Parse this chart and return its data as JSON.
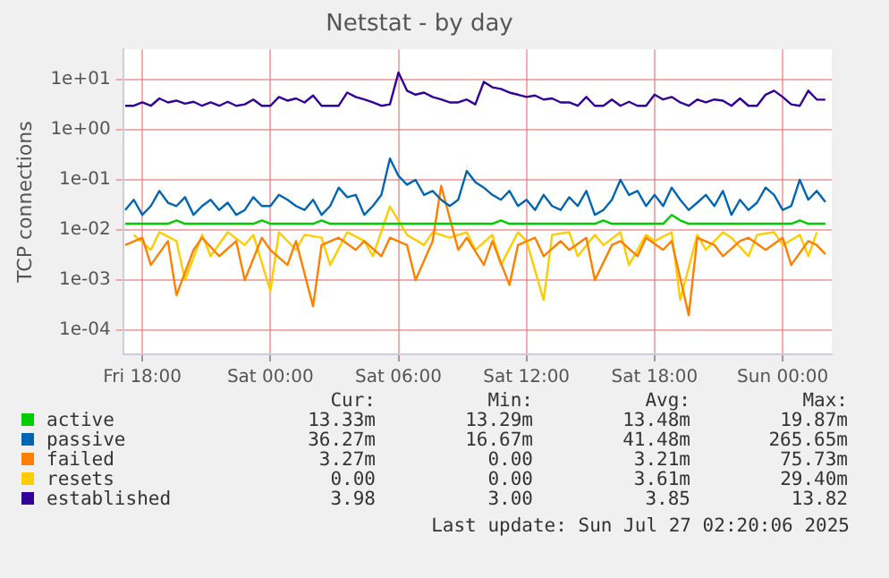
{
  "chart_data": {
    "type": "line",
    "title": "Netstat - by day",
    "ylabel": "TCP connections",
    "log": "y",
    "grid": true,
    "legend": "bottom",
    "marker": "none",
    "line_style": "solid",
    "xlim": [
      "2025-07-25T17:06",
      "2025-07-27T02:18"
    ],
    "ylim": [
      3.3e-05,
      40
    ],
    "xticks": [
      {
        "value": "2025-07-25T18:00",
        "label": "Fri 18:00"
      },
      {
        "value": "2025-07-26T00:00",
        "label": "Sat 00:00"
      },
      {
        "value": "2025-07-26T06:00",
        "label": "Sat 06:00"
      },
      {
        "value": "2025-07-26T12:00",
        "label": "Sat 12:00"
      },
      {
        "value": "2025-07-26T18:00",
        "label": "Sat 18:00"
      },
      {
        "value": "2025-07-27T00:00",
        "label": "Sun 00:00"
      }
    ],
    "yticks": [
      {
        "value": 0.0001,
        "label": "1e-04"
      },
      {
        "value": 0.001,
        "label": "1e-03"
      },
      {
        "value": 0.01,
        "label": "1e-02"
      },
      {
        "value": 0.1,
        "label": "1e-01"
      },
      {
        "value": 1,
        "label": "1e+00"
      },
      {
        "value": 10,
        "label": "1e+01"
      }
    ],
    "x": [
      "2025-07-25T17:12",
      "2025-07-25T17:36",
      "2025-07-25T18:00",
      "2025-07-25T18:24",
      "2025-07-25T18:48",
      "2025-07-25T19:12",
      "2025-07-25T19:36",
      "2025-07-25T20:00",
      "2025-07-25T20:24",
      "2025-07-25T20:48",
      "2025-07-25T21:12",
      "2025-07-25T21:36",
      "2025-07-25T22:00",
      "2025-07-25T22:24",
      "2025-07-25T22:48",
      "2025-07-25T23:12",
      "2025-07-25T23:36",
      "2025-07-26T00:00",
      "2025-07-26T00:24",
      "2025-07-26T00:48",
      "2025-07-26T01:12",
      "2025-07-26T01:36",
      "2025-07-26T02:00",
      "2025-07-26T02:24",
      "2025-07-26T02:48",
      "2025-07-26T03:12",
      "2025-07-26T03:36",
      "2025-07-26T04:00",
      "2025-07-26T04:24",
      "2025-07-26T04:48",
      "2025-07-26T05:12",
      "2025-07-26T05:36",
      "2025-07-26T06:00",
      "2025-07-26T06:24",
      "2025-07-26T06:48",
      "2025-07-26T07:12",
      "2025-07-26T07:36",
      "2025-07-26T08:00",
      "2025-07-26T08:24",
      "2025-07-26T08:48",
      "2025-07-26T09:12",
      "2025-07-26T09:36",
      "2025-07-26T10:00",
      "2025-07-26T10:24",
      "2025-07-26T10:48",
      "2025-07-26T11:12",
      "2025-07-26T11:36",
      "2025-07-26T12:00",
      "2025-07-26T12:24",
      "2025-07-26T12:48",
      "2025-07-26T13:12",
      "2025-07-26T13:36",
      "2025-07-26T14:00",
      "2025-07-26T14:24",
      "2025-07-26T14:48",
      "2025-07-26T15:12",
      "2025-07-26T15:36",
      "2025-07-26T16:00",
      "2025-07-26T16:24",
      "2025-07-26T16:48",
      "2025-07-26T17:12",
      "2025-07-26T17:36",
      "2025-07-26T18:00",
      "2025-07-26T18:24",
      "2025-07-26T18:48",
      "2025-07-26T19:12",
      "2025-07-26T19:36",
      "2025-07-26T20:00",
      "2025-07-26T20:24",
      "2025-07-26T20:48",
      "2025-07-26T21:12",
      "2025-07-26T21:36",
      "2025-07-26T22:00",
      "2025-07-26T22:24",
      "2025-07-26T22:48",
      "2025-07-26T23:12",
      "2025-07-26T23:36",
      "2025-07-27T00:00",
      "2025-07-27T00:24",
      "2025-07-27T00:48",
      "2025-07-27T01:12",
      "2025-07-27T01:36",
      "2025-07-27T02:00"
    ],
    "series": [
      {
        "name": "active",
        "color": "#00cc00",
        "values": [
          0.0133,
          0.0133,
          0.0133,
          0.0133,
          0.0133,
          0.0133,
          0.0155,
          0.0133,
          0.0133,
          0.0133,
          0.0133,
          0.0133,
          0.0133,
          0.0133,
          0.0133,
          0.0133,
          0.0155,
          0.0133,
          0.0133,
          0.0133,
          0.0133,
          0.0133,
          0.0133,
          0.0155,
          0.0133,
          0.0133,
          0.0133,
          0.0133,
          0.0133,
          0.0133,
          0.0133,
          0.0133,
          0.0133,
          0.0133,
          0.0133,
          0.0133,
          0.0133,
          0.0133,
          0.0133,
          0.0133,
          0.0133,
          0.0133,
          0.0133,
          0.0133,
          0.0155,
          0.0133,
          0.0133,
          0.0133,
          0.0133,
          0.0133,
          0.0133,
          0.0133,
          0.0133,
          0.0133,
          0.0133,
          0.0133,
          0.0155,
          0.0133,
          0.0133,
          0.0133,
          0.0133,
          0.0133,
          0.0133,
          0.0133,
          0.0199,
          0.0155,
          0.0133,
          0.0133,
          0.0133,
          0.0133,
          0.0133,
          0.0133,
          0.0133,
          0.0133,
          0.0133,
          0.0133,
          0.0133,
          0.0133,
          0.0133,
          0.0155,
          0.0133,
          0.0133,
          0.0133
        ]
      },
      {
        "name": "passive",
        "color": "#0066b3",
        "values": [
          0.025,
          0.04,
          0.02,
          0.03,
          0.06,
          0.035,
          0.03,
          0.045,
          0.02,
          0.03,
          0.04,
          0.025,
          0.035,
          0.02,
          0.025,
          0.045,
          0.03,
          0.03,
          0.05,
          0.04,
          0.03,
          0.025,
          0.04,
          0.02,
          0.03,
          0.07,
          0.045,
          0.05,
          0.02,
          0.03,
          0.05,
          0.265,
          0.12,
          0.08,
          0.1,
          0.05,
          0.06,
          0.04,
          0.03,
          0.04,
          0.15,
          0.09,
          0.07,
          0.05,
          0.04,
          0.06,
          0.03,
          0.04,
          0.025,
          0.05,
          0.03,
          0.025,
          0.045,
          0.03,
          0.06,
          0.02,
          0.025,
          0.04,
          0.1,
          0.05,
          0.06,
          0.03,
          0.05,
          0.03,
          0.07,
          0.04,
          0.025,
          0.035,
          0.05,
          0.03,
          0.06,
          0.02,
          0.04,
          0.025,
          0.035,
          0.07,
          0.05,
          0.025,
          0.03,
          0.1,
          0.04,
          0.06,
          0.036
        ]
      },
      {
        "name": "failed",
        "color": "#ff8000",
        "values": [
          0.005,
          null,
          0.007,
          0.002,
          null,
          0.006,
          0.0005,
          null,
          0.004,
          0.007,
          null,
          0.003,
          null,
          0.006,
          0.001,
          null,
          0.007,
          0.004,
          null,
          0.002,
          0.006,
          null,
          0.0003,
          0.005,
          null,
          0.007,
          null,
          0.004,
          0.006,
          null,
          0.003,
          0.007,
          null,
          0.005,
          0.001,
          null,
          0.006,
          0.0757,
          null,
          0.004,
          0.007,
          null,
          0.002,
          0.006,
          null,
          0.0008,
          0.005,
          null,
          0.007,
          0.003,
          null,
          0.006,
          0.004,
          null,
          0.007,
          0.001,
          null,
          0.005,
          0.006,
          null,
          0.003,
          0.007,
          null,
          0.004,
          0.006,
          null,
          0.0002,
          0.007,
          null,
          0.005,
          0.003,
          null,
          0.006,
          0.007,
          null,
          0.004,
          null,
          0.007,
          0.002,
          null,
          0.006,
          0.005,
          0.00327
        ]
      },
      {
        "name": "resets",
        "color": "#ffcc00",
        "values": [
          null,
          0.008,
          null,
          0.004,
          0.009,
          null,
          0.006,
          0.001,
          null,
          0.008,
          0.003,
          null,
          0.009,
          null,
          0.005,
          0.008,
          null,
          0.0006,
          0.009,
          null,
          0.004,
          0.008,
          null,
          0.007,
          0.002,
          null,
          0.009,
          null,
          0.006,
          0.003,
          null,
          0.0294,
          null,
          0.008,
          null,
          0.005,
          0.009,
          null,
          0.007,
          null,
          0.009,
          0.004,
          null,
          0.008,
          0.002,
          null,
          0.009,
          0.006,
          null,
          0.0004,
          0.008,
          null,
          0.009,
          0.003,
          null,
          0.008,
          0.005,
          null,
          0.009,
          0.002,
          null,
          0.008,
          0.006,
          null,
          0.009,
          0.0004,
          null,
          0.008,
          0.004,
          null,
          0.009,
          0.007,
          null,
          0.003,
          0.008,
          null,
          0.009,
          0.005,
          null,
          0.008,
          0.003,
          0.009,
          null
        ]
      },
      {
        "name": "established",
        "color": "#330099",
        "values": [
          3,
          3,
          3.5,
          3,
          4.2,
          3.5,
          3.8,
          3.3,
          3.6,
          3,
          3.5,
          3,
          3.6,
          3,
          3.2,
          4,
          3,
          3,
          4.5,
          3.8,
          4.2,
          3.5,
          4.8,
          3,
          3,
          3,
          5.5,
          4.5,
          4,
          3.5,
          3,
          3.2,
          13.8,
          6,
          5,
          5.5,
          4.5,
          4,
          3.5,
          3.5,
          4,
          3.2,
          9,
          7,
          6.5,
          5.5,
          5,
          4.5,
          4.8,
          4,
          4.2,
          3.5,
          3.5,
          3,
          4.5,
          3,
          3,
          4,
          3,
          3.6,
          3,
          3,
          5,
          4,
          4.5,
          3.5,
          3,
          4,
          3.5,
          4,
          3.8,
          3,
          4.2,
          3,
          3,
          5,
          6,
          4.5,
          3.2,
          3,
          6,
          4,
          3.98
        ]
      }
    ],
    "annotations": [
      "Cur:",
      "Min:",
      "Avg:",
      "Max:",
      "13.33m",
      "13.29m",
      "13.48m",
      "19.87m",
      "36.27m",
      "16.67m",
      "41.48m",
      "265.65m",
      "3.27m",
      "0.00",
      "3.21m",
      "75.73m",
      "0.00",
      "0.00",
      "3.61m",
      "29.40m",
      "3.98",
      "3.00",
      "3.85",
      "13.82",
      "Last update: Sun Jul 27 02:20:06 2025"
    ]
  }
}
